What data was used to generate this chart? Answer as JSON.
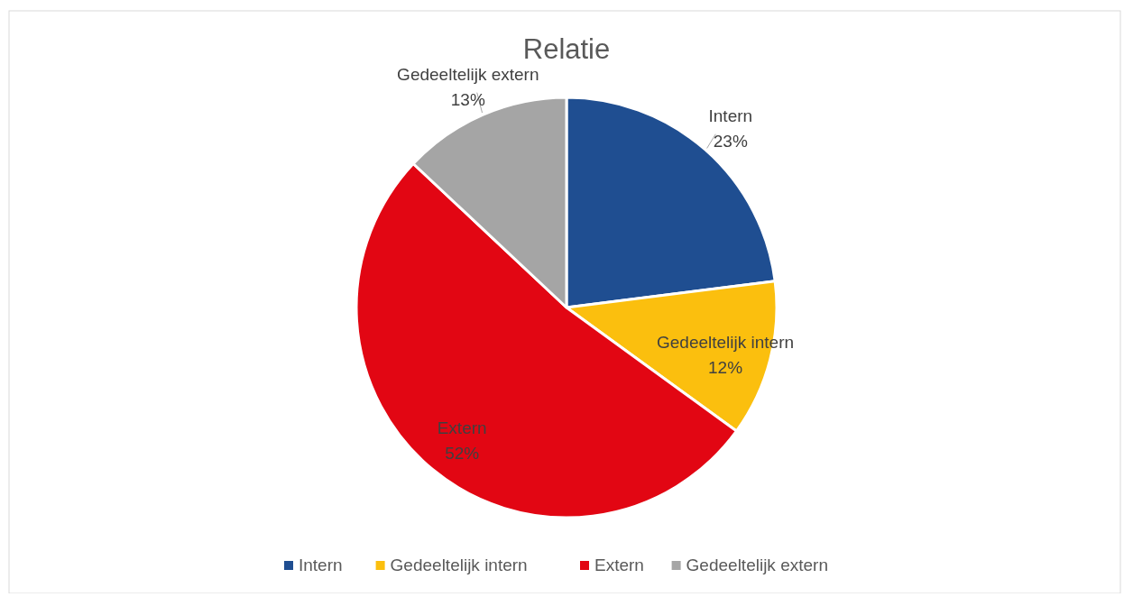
{
  "chart_data": {
    "type": "pie",
    "title": "Relatie",
    "categories": [
      "Intern",
      "Gedeeltelijk intern",
      "Extern",
      "Gedeeltelijk extern"
    ],
    "values": [
      23,
      12,
      52,
      13
    ],
    "colors": [
      "#1f4e91",
      "#fbbf0e",
      "#e20613",
      "#a5a5a5"
    ],
    "value_labels": [
      "23%",
      "12%",
      "52%",
      "13%"
    ],
    "legend": "bottom"
  }
}
